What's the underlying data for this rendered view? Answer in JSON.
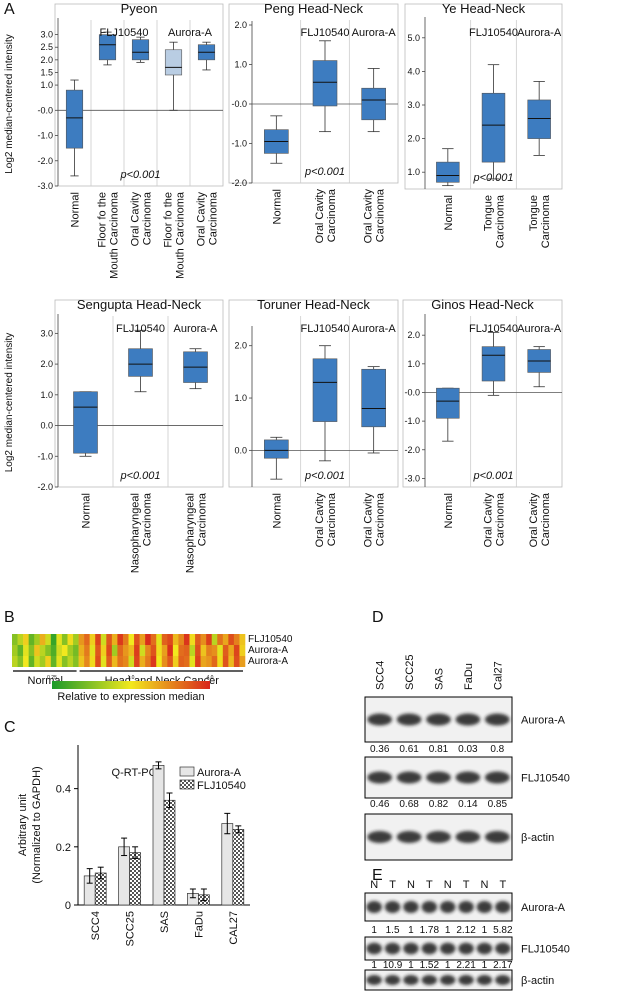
{
  "panel_labels": [
    "A",
    "B",
    "C",
    "D",
    "E"
  ],
  "chart_data": [
    {
      "type": "box",
      "title": "Pyeon",
      "ylabel": "Log2 median-centered intensity",
      "categories": [
        [
          "Normal"
        ],
        [
          "Floor fo the",
          "Mouth Carcinoma"
        ],
        [
          "Oral Cavity",
          "Carcinoma"
        ],
        [
          "Floor fo the",
          "Mouth Carcinoma"
        ],
        [
          "Oral Cavity",
          "Carcinoma"
        ]
      ],
      "boxes": [
        {
          "min": -2.6,
          "q1": -1.5,
          "median": -0.3,
          "q3": 0.8,
          "max": 1.2
        },
        {
          "min": 1.8,
          "q1": 2.0,
          "median": 2.6,
          "q3": 3.0,
          "max": 3.1
        },
        {
          "min": 1.9,
          "q1": 2.0,
          "median": 2.3,
          "q3": 2.8,
          "max": 2.9
        },
        {
          "min": 0.0,
          "q1": 1.4,
          "median": 1.7,
          "q3": 2.4,
          "max": 2.7
        },
        {
          "min": 1.6,
          "q1": 2.0,
          "median": 2.3,
          "q3": 2.6,
          "max": 2.7
        }
      ],
      "colors": [
        "#3d7cc0",
        "#3d7cc0",
        "#3d7cc0",
        "#b9cde3",
        "#3d7cc0"
      ],
      "annotations": [
        "FLJ10540",
        "Aurora-A"
      ],
      "p_value": "p<0.001",
      "ylim": [
        -3,
        3.5
      ],
      "yticks": [
        {
          "value": 3,
          "label": "3.0"
        },
        {
          "value": 2.5,
          "label": "2.5"
        },
        {
          "value": 2,
          "label": "2.0"
        },
        {
          "value": 1.5,
          "label": "1.5"
        },
        {
          "value": 1,
          "label": "1.0"
        },
        {
          "value": 0,
          "label": "-0.0"
        },
        {
          "value": -1,
          "label": "-1.0"
        },
        {
          "value": -2,
          "label": "-2.0"
        },
        {
          "value": -3,
          "label": "-3.0"
        }
      ]
    },
    {
      "type": "box",
      "title": "Peng Head-Neck",
      "categories": [
        [
          "Normal"
        ],
        [
          "Oral Cavity",
          "Carcinoma"
        ],
        [
          "Oral Cavity",
          "Carcinoma"
        ]
      ],
      "boxes": [
        {
          "min": -1.5,
          "q1": -1.25,
          "median": -0.95,
          "q3": -0.65,
          "max": -0.3
        },
        {
          "min": -0.7,
          "q1": -0.05,
          "median": 0.55,
          "q3": 1.1,
          "max": 1.6
        },
        {
          "min": -0.7,
          "q1": -0.4,
          "median": 0.1,
          "q3": 0.4,
          "max": 0.9
        }
      ],
      "colors": [
        "#3d7cc0",
        "#3d7cc0",
        "#3d7cc0"
      ],
      "annotations": [
        "FLJ10540",
        "Aurora-A"
      ],
      "p_value": "p<0.001",
      "ylim": [
        -2,
        2
      ],
      "yticks": [
        {
          "value": 2,
          "label": "2.0"
        },
        {
          "value": 1,
          "label": "1.0"
        },
        {
          "value": 0,
          "label": "-0.0"
        },
        {
          "value": -1,
          "label": "-1.0"
        },
        {
          "value": -2,
          "label": "-2.0"
        }
      ]
    },
    {
      "type": "box",
      "title": "Ye Head-Neck",
      "categories": [
        [
          "Normal"
        ],
        [
          "Tongue",
          "Carcinoma"
        ],
        [
          "Tongue",
          "Carcinoma"
        ]
      ],
      "boxes": [
        {
          "min": 0.6,
          "q1": 0.7,
          "median": 0.9,
          "q3": 1.3,
          "max": 1.7
        },
        {
          "min": 0.8,
          "q1": 1.3,
          "median": 2.4,
          "q3": 3.35,
          "max": 4.2
        },
        {
          "min": 1.5,
          "q1": 2.0,
          "median": 2.6,
          "q3": 3.15,
          "max": 3.7
        }
      ],
      "colors": [
        "#3d7cc0",
        "#3d7cc0",
        "#3d7cc0"
      ],
      "annotations": [
        "FLJ10540",
        "Aurora-A"
      ],
      "p_value": "p<0.001",
      "ylim": [
        0.5,
        5.5
      ],
      "yticks": [
        {
          "value": 5,
          "label": "5.0"
        },
        {
          "value": 4,
          "label": "4.0"
        },
        {
          "value": 3,
          "label": "3.0"
        },
        {
          "value": 2,
          "label": "2.0"
        },
        {
          "value": 1,
          "label": "1.0"
        }
      ]
    },
    {
      "type": "box",
      "title": "Sengupta Head-Neck",
      "ylabel": "Log2 median-centered intensity",
      "categories": [
        [
          "Normal"
        ],
        [
          "Nasopharyngeal",
          "Carcinoma"
        ],
        [
          "Nasopharyngeal",
          "Carcinoma"
        ]
      ],
      "boxes": [
        {
          "min": -1.0,
          "q1": -0.9,
          "median": 0.6,
          "q3": 1.1,
          "max": 1.1
        },
        {
          "min": 1.1,
          "q1": 1.6,
          "median": 2.0,
          "q3": 2.5,
          "max": 3.1
        },
        {
          "min": 1.2,
          "q1": 1.4,
          "median": 1.9,
          "q3": 2.4,
          "max": 2.5
        }
      ],
      "colors": [
        "#3d7cc0",
        "#3d7cc0",
        "#3d7cc0"
      ],
      "annotations": [
        "FLJ10540",
        "Aurora-A"
      ],
      "p_value": "p<0.001",
      "ylim": [
        -2,
        3.5
      ],
      "yticks": [
        {
          "value": 3,
          "label": "3.0"
        },
        {
          "value": 2,
          "label": "2.0"
        },
        {
          "value": 1,
          "label": "1.0"
        },
        {
          "value": 0,
          "label": "0.0"
        },
        {
          "value": -1,
          "label": "-1.0"
        },
        {
          "value": -2,
          "label": "-2.0"
        }
      ]
    },
    {
      "type": "box",
      "title": "Toruner Head-Neck",
      "categories": [
        [
          "Normal"
        ],
        [
          "Oral Cavity",
          "Carcinoma"
        ],
        [
          "Oral Cavity",
          "Carcinoma"
        ]
      ],
      "boxes": [
        {
          "min": -0.55,
          "q1": -0.15,
          "median": 0.0,
          "q3": 0.2,
          "max": 0.25
        },
        {
          "min": -0.2,
          "q1": 0.55,
          "median": 1.3,
          "q3": 1.75,
          "max": 2.0
        },
        {
          "min": -0.05,
          "q1": 0.45,
          "median": 0.8,
          "q3": 1.55,
          "max": 1.6
        }
      ],
      "colors": [
        "#3d7cc0",
        "#3d7cc0",
        "#3d7cc0"
      ],
      "annotations": [
        "FLJ10540",
        "Aurora-A"
      ],
      "p_value": "p<0.001",
      "ylim": [
        -0.7,
        2.3
      ],
      "yticks": [
        {
          "value": 2,
          "label": "2.0"
        },
        {
          "value": 1,
          "label": "1.0"
        },
        {
          "value": 0,
          "label": "0.0"
        }
      ]
    },
    {
      "type": "box",
      "title": "Ginos Head-Neck",
      "categories": [
        [
          "Normal"
        ],
        [
          "Oral Cavity",
          "Carcinoma"
        ],
        [
          "Oral Cavity",
          "Carcinoma"
        ]
      ],
      "boxes": [
        {
          "min": -1.7,
          "q1": -0.9,
          "median": -0.3,
          "q3": 0.15,
          "max": 0.15
        },
        {
          "min": -0.1,
          "q1": 0.4,
          "median": 1.3,
          "q3": 1.6,
          "max": 2.1
        },
        {
          "min": 0.2,
          "q1": 0.7,
          "median": 1.1,
          "q3": 1.5,
          "max": 1.6
        }
      ],
      "colors": [
        "#3d7cc0",
        "#3d7cc0",
        "#3d7cc0"
      ],
      "annotations": [
        "FLJ10540",
        "Aurora-A"
      ],
      "p_value": "p<0.001",
      "ylim": [
        -3.3,
        2.6
      ],
      "yticks": [
        {
          "value": 2,
          "label": "2.0"
        },
        {
          "value": 1,
          "label": "1.0"
        },
        {
          "value": 0,
          "label": "-0.0"
        },
        {
          "value": -1,
          "label": "-1.0"
        },
        {
          "value": -2,
          "label": "-2.0"
        },
        {
          "value": -3,
          "label": "-3.0"
        }
      ]
    },
    {
      "type": "heatmap",
      "rows": [
        "FLJ10540",
        "Aurora-A",
        "Aurora-A"
      ],
      "groups": [
        {
          "name": "Normal",
          "values": [
            [
              0.5,
              0.7,
              1.2,
              0.4,
              0.6,
              1.5,
              0.8,
              0.3,
              0.9,
              0.5,
              1.1,
              0.6
            ],
            [
              0.6,
              0.4,
              0.9,
              0.5,
              1.3,
              0.7,
              0.5,
              0.35,
              0.8,
              1.0,
              0.6,
              0.45
            ],
            [
              0.7,
              0.5,
              1.0,
              0.4,
              0.8,
              0.6,
              1.2,
              0.4,
              0.9,
              0.5,
              0.7,
              0.5
            ]
          ]
        },
        {
          "name": "Head and Neck Cancer",
          "values": [
            [
              1.8,
              2.5,
              1.2,
              3.2,
              0.8,
              2.8,
              1.5,
              3.5,
              2.2,
              1.0,
              2.9,
              1.7,
              3.8,
              2.4,
              0.9,
              2.6,
              3.1,
              1.4,
              2.0,
              3.6,
              1.1,
              2.7,
              1.9,
              3.3,
              0.7,
              2.3,
              1.6,
              3.0,
              2.1,
              1.3
            ],
            [
              1.5,
              2.2,
              0.9,
              2.8,
              1.2,
              3.1,
              0.6,
              2.5,
              1.8,
              1.4,
              3.4,
              0.8,
              2.0,
              2.9,
              1.1,
              1.7,
              3.7,
              1.0,
              2.4,
              2.6,
              0.7,
              3.0,
              1.3,
              2.1,
              1.9,
              0.9,
              2.7,
              1.6,
              3.2,
              1.2
            ],
            [
              1.3,
              2.0,
              1.1,
              3.0,
              0.9,
              2.7,
              1.4,
              2.3,
              2.0,
              0.8,
              3.2,
              1.5,
              2.2,
              3.5,
              1.0,
              1.9,
              2.8,
              1.2,
              2.6,
              2.4,
              0.9,
              3.3,
              1.6,
              1.8,
              2.5,
              1.1,
              2.9,
              1.4,
              3.0,
              1.7
            ]
          ]
        }
      ],
      "colorbar_label": "Relative to expression median",
      "colorbar_ticks": [
        0.25,
        {
          "value": 1,
          "label": "1.0"
        },
        {
          "value": 4,
          "label": "4.0"
        }
      ]
    },
    {
      "type": "bar",
      "title": "Q-RT-PCR",
      "ylabel": [
        "Arbitrary unit",
        "(Normalized to GAPDH)"
      ],
      "categories": [
        "SCC4",
        "SCC25",
        "SAS",
        "FaDu",
        "CAL27"
      ],
      "series": [
        {
          "name": "Aurora-A",
          "color": "#e6e6e6",
          "values": [
            0.1,
            0.2,
            0.48,
            0.04,
            0.28
          ],
          "errors": [
            0.025,
            0.03,
            0.012,
            0.015,
            0.035
          ]
        },
        {
          "name": "FLJ10540",
          "color": "#777777",
          "pattern": "checker",
          "values": [
            0.11,
            0.18,
            0.36,
            0.035,
            0.26
          ],
          "errors": [
            0.02,
            0.02,
            0.025,
            0.02,
            0.012
          ]
        }
      ],
      "ylim": [
        0,
        0.55
      ],
      "yticks": [
        0,
        0.2,
        0.4
      ]
    }
  ],
  "blots": [
    {
      "lanes": [
        "SCC4",
        "SCC25",
        "SAS",
        "FaDu",
        "Cal27"
      ],
      "rows": [
        {
          "label": "Aurora-A",
          "values": [
            0.36,
            0.61,
            0.81,
            0.03,
            0.8
          ]
        },
        {
          "label": "FLJ10540",
          "values": [
            0.46,
            0.68,
            0.82,
            0.14,
            0.85
          ]
        },
        {
          "label": "β-actin"
        }
      ]
    },
    {
      "lanes": [
        "N",
        "T",
        "N",
        "T",
        "N",
        "T",
        "N",
        "T"
      ],
      "rows": [
        {
          "label": "Aurora-A",
          "values": [
            1,
            1.5,
            1,
            1.78,
            1,
            2.12,
            1,
            5.82
          ]
        },
        {
          "label": "FLJ10540",
          "values": [
            1,
            10.9,
            1,
            1.52,
            1,
            2.21,
            1,
            2.17
          ]
        },
        {
          "label": "β-actin"
        }
      ]
    }
  ]
}
